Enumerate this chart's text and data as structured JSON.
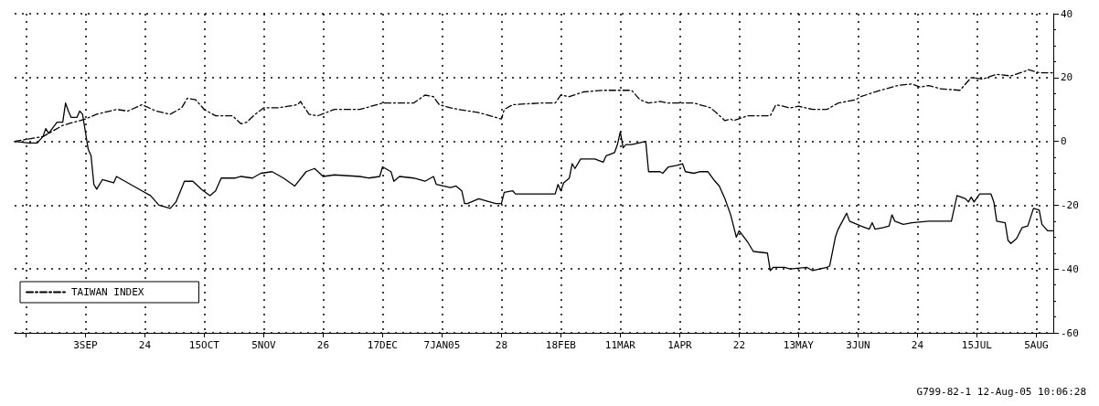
{
  "chart_data": {
    "type": "line",
    "xlim": [
      "2004-08-09",
      "2005-08-11"
    ],
    "ylim": [
      -60,
      40
    ],
    "xticks": [
      {
        "value": "2004-08-13",
        "label": null
      },
      {
        "value": "2004-09-03",
        "label": "3SEP"
      },
      {
        "value": "2004-09-24",
        "label": "24"
      },
      {
        "value": "2004-10-15",
        "label": "15OCT"
      },
      {
        "value": "2004-11-05",
        "label": "5NOV"
      },
      {
        "value": "2004-11-26",
        "label": "26"
      },
      {
        "value": "2004-12-17",
        "label": "17DEC"
      },
      {
        "value": "2005-01-07",
        "label": "7JAN05"
      },
      {
        "value": "2005-01-28",
        "label": "28"
      },
      {
        "value": "2005-02-18",
        "label": "18FEB"
      },
      {
        "value": "2005-03-11",
        "label": "11MAR"
      },
      {
        "value": "2005-04-01",
        "label": "1APR"
      },
      {
        "value": "2005-04-22",
        "label": "22"
      },
      {
        "value": "2005-05-13",
        "label": "13MAY"
      },
      {
        "value": "2005-06-03",
        "label": "3JUN"
      },
      {
        "value": "2005-06-24",
        "label": "24"
      },
      {
        "value": "2005-07-15",
        "label": "15JUL"
      },
      {
        "value": "2005-08-05",
        "label": "5AUG"
      }
    ],
    "yticks": [
      -60,
      -40,
      -20,
      0,
      20,
      40
    ],
    "grid": true,
    "legend": "bottom left",
    "marker": "none",
    "annotations": [
      "G799-82-1 12-Aug-05 10:06:28"
    ],
    "series": [
      {
        "color": "#000000",
        "line_style": "solid",
        "x": [
          "2004-08-09",
          "2004-08-14",
          "2004-08-17",
          "2004-08-19",
          "2004-08-20",
          "2004-08-21",
          "2004-08-24",
          "2004-08-26",
          "2004-08-27",
          "2004-08-28",
          "2004-08-29",
          "2004-08-31",
          "2004-09-01",
          "2004-09-02",
          "2004-09-03",
          "2004-09-04",
          "2004-09-05",
          "2004-09-06",
          "2004-09-07",
          "2004-09-09",
          "2004-09-13",
          "2004-09-14",
          "2004-09-16",
          "2004-09-20",
          "2004-09-23",
          "2004-09-26",
          "2004-09-29",
          "2004-10-03",
          "2004-10-05",
          "2004-10-08",
          "2004-10-11",
          "2004-10-14",
          "2004-10-17",
          "2004-10-19",
          "2004-10-21",
          "2004-10-26",
          "2004-10-28",
          "2004-11-01",
          "2004-11-04",
          "2004-11-08",
          "2004-11-12",
          "2004-11-16",
          "2004-11-20",
          "2004-11-23",
          "2004-11-26",
          "2004-11-30",
          "2004-12-09",
          "2004-12-12",
          "2004-12-16",
          "2004-12-17",
          "2004-12-20",
          "2004-12-21",
          "2004-12-23",
          "2004-12-28",
          "2005-01-01",
          "2005-01-04",
          "2005-01-05",
          "2005-01-10",
          "2005-01-12",
          "2005-01-14",
          "2005-01-15",
          "2005-01-16",
          "2005-01-20",
          "2005-01-26",
          "2005-01-28",
          "2005-01-29",
          "2005-02-01",
          "2005-02-02",
          "2005-02-14",
          "2005-02-16",
          "2005-02-17",
          "2005-02-18",
          "2005-02-19",
          "2005-02-21",
          "2005-02-22",
          "2005-02-23",
          "2005-02-25",
          "2005-03-02",
          "2005-03-05",
          "2005-03-06",
          "2005-03-09",
          "2005-03-10",
          "2005-03-11",
          "2005-03-12",
          "2005-03-13",
          "2005-03-15",
          "2005-03-20",
          "2005-03-21",
          "2005-03-25",
          "2005-03-26",
          "2005-03-28",
          "2005-03-31",
          "2005-04-02",
          "2005-04-03",
          "2005-04-06",
          "2005-04-08",
          "2005-04-11",
          "2005-04-13",
          "2005-04-15",
          "2005-04-17",
          "2005-04-19",
          "2005-04-21",
          "2005-04-22",
          "2005-04-25",
          "2005-04-27",
          "2005-05-02",
          "2005-05-03",
          "2005-05-04",
          "2005-05-08",
          "2005-05-10",
          "2005-05-16",
          "2005-05-18",
          "2005-05-23",
          "2005-05-24",
          "2005-05-26",
          "2005-05-27",
          "2005-05-30",
          "2005-05-31",
          "2005-06-04",
          "2005-06-07",
          "2005-06-08",
          "2005-06-09",
          "2005-06-12",
          "2005-06-14",
          "2005-06-15",
          "2005-06-16",
          "2005-06-19",
          "2005-06-22",
          "2005-06-28",
          "2005-07-06",
          "2005-07-08",
          "2005-07-11",
          "2005-07-12",
          "2005-07-13",
          "2005-07-14",
          "2005-07-16",
          "2005-07-20",
          "2005-07-21",
          "2005-07-22",
          "2005-07-25",
          "2005-07-26",
          "2005-07-27",
          "2005-07-29",
          "2005-07-31",
          "2005-08-02",
          "2005-08-04",
          "2005-08-06",
          "2005-08-07",
          "2005-08-09",
          "2005-08-11"
        ],
        "values": [
          0,
          -0.5,
          -0.5,
          1.5,
          4,
          2.5,
          6,
          6,
          12,
          9.5,
          7.5,
          7.5,
          9.5,
          8.5,
          3,
          -2.5,
          -4.5,
          -13.5,
          -15,
          -12,
          -13,
          -11,
          -12,
          -14,
          -15.5,
          -17,
          -20,
          -21,
          -19,
          -12.5,
          -12.5,
          -15,
          -17,
          -15.5,
          -11.5,
          -11.5,
          -11,
          -11.5,
          -10,
          -9.5,
          -11.5,
          -14,
          -9.5,
          -8.5,
          -11,
          -10.5,
          -11,
          -11.5,
          -11,
          -8,
          -9.5,
          -12.5,
          -11,
          -11.5,
          -12.5,
          -11,
          -13.5,
          -14.5,
          -14,
          -15.5,
          -19.5,
          -19.5,
          -18,
          -19.5,
          -19.5,
          -16,
          -15.5,
          -16.5,
          -16.5,
          -16.5,
          -13.5,
          -15.5,
          -13,
          -11.5,
          -7,
          -8.5,
          -5.5,
          -5.5,
          -6.5,
          -4.5,
          -3.5,
          -1,
          3,
          -2,
          -1,
          -1,
          0,
          -9.5,
          -9.5,
          -10,
          -8,
          -7.5,
          -7,
          -9.5,
          -10,
          -9.5,
          -9.5,
          -12,
          -14,
          -18,
          -23,
          -30,
          -28,
          -31.5,
          -34.5,
          -35,
          -40.5,
          -39.5,
          -39.5,
          -40,
          -39.5,
          -40.5,
          -39.5,
          -39,
          -30,
          -27.5,
          -22.5,
          -25,
          -26.5,
          -27.5,
          -25.5,
          -27.5,
          -27,
          -26.5,
          -23,
          -25,
          -26,
          -25.5,
          -25,
          -25,
          -17,
          -18,
          -19,
          -17.5,
          -19,
          -16.5,
          -16.5,
          -19,
          -25,
          -25.5,
          -31,
          -32,
          -30.5,
          -27,
          -26.5,
          -21,
          -21.5,
          -26,
          -28,
          -28
        ]
      },
      {
        "name": "TAIWAN INDEX",
        "color": "#000000",
        "line_style": "dashed",
        "x": [
          "2004-08-09",
          "2004-08-19",
          "2004-08-26",
          "2004-09-03",
          "2004-09-07",
          "2004-09-14",
          "2004-09-18",
          "2004-09-23",
          "2004-09-28",
          "2004-10-03",
          "2004-10-07",
          "2004-10-09",
          "2004-10-12",
          "2004-10-15",
          "2004-10-19",
          "2004-10-25",
          "2004-10-28",
          "2004-10-30",
          "2004-11-02",
          "2004-11-05",
          "2004-11-10",
          "2004-11-17",
          "2004-11-18",
          "2004-11-21",
          "2004-11-24",
          "2004-11-30",
          "2004-12-09",
          "2004-12-17",
          "2004-12-28",
          "2005-01-01",
          "2005-01-04",
          "2005-01-06",
          "2005-01-10",
          "2005-01-13",
          "2005-01-20",
          "2005-01-26",
          "2005-01-28",
          "2005-01-29",
          "2005-02-01",
          "2005-02-11",
          "2005-02-16",
          "2005-02-18",
          "2005-02-21",
          "2005-02-26",
          "2005-03-05",
          "2005-03-11",
          "2005-03-15",
          "2005-03-18",
          "2005-03-21",
          "2005-03-25",
          "2005-03-28",
          "2005-03-31",
          "2005-04-06",
          "2005-04-12",
          "2005-04-17",
          "2005-04-19",
          "2005-04-20",
          "2005-04-25",
          "2005-05-03",
          "2005-05-05",
          "2005-05-10",
          "2005-05-13",
          "2005-05-18",
          "2005-05-23",
          "2005-05-27",
          "2005-06-02",
          "2005-06-04",
          "2005-06-09",
          "2005-06-17",
          "2005-06-22",
          "2005-06-25",
          "2005-06-28",
          "2005-07-02",
          "2005-07-09",
          "2005-07-13",
          "2005-07-17",
          "2005-07-22",
          "2005-07-27",
          "2005-08-01",
          "2005-08-02",
          "2005-08-06",
          "2005-08-11"
        ],
        "values": [
          0,
          1.5,
          5,
          7,
          8.5,
          10,
          9.5,
          11.5,
          9.5,
          8.5,
          10.5,
          13.5,
          13,
          10,
          8,
          8,
          5.5,
          6,
          8.5,
          10.5,
          10.5,
          11.5,
          12.5,
          8.5,
          8,
          10,
          10,
          12,
          12,
          14.5,
          14,
          11.5,
          10.5,
          10,
          9,
          7.5,
          7,
          10,
          11.5,
          12,
          12,
          14.5,
          14,
          15.5,
          16,
          16,
          16,
          13,
          12,
          12.5,
          12,
          12,
          12,
          10.5,
          6.5,
          7,
          6.5,
          8,
          8,
          11.5,
          10.5,
          11,
          10,
          10,
          12,
          13,
          14,
          15.5,
          17.5,
          18,
          17,
          17.5,
          16.5,
          16,
          20,
          19.5,
          21,
          20.5,
          22,
          22.5,
          21.5,
          21.5
        ]
      }
    ]
  }
}
